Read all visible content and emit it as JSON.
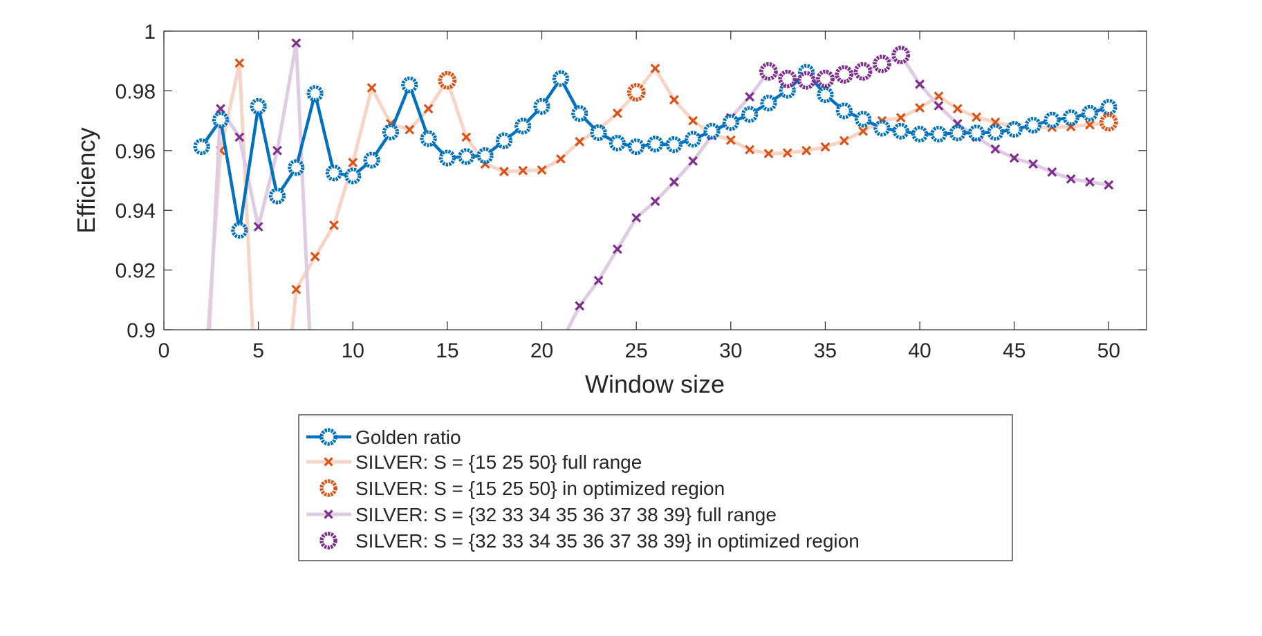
{
  "chart_data": {
    "type": "line",
    "title": "",
    "xlabel": "Window size",
    "ylabel": "Efficiency",
    "xlim": [
      0,
      52
    ],
    "ylim": [
      0.9,
      1
    ],
    "xticks": [
      0,
      5,
      10,
      15,
      20,
      25,
      30,
      35,
      40,
      45,
      50
    ],
    "xtick_labels": [
      "0",
      "5",
      "10",
      "15",
      "20",
      "25",
      "30",
      "35",
      "40",
      "45",
      "50"
    ],
    "yticks": [
      0.9,
      0.92,
      0.94,
      0.96,
      0.98,
      1
    ],
    "ytick_labels": [
      "0.9",
      "0.92",
      "0.94",
      "0.96",
      "0.98",
      "1"
    ],
    "grid": false,
    "legend_position": "below the axes",
    "x": [
      2,
      3,
      4,
      5,
      6,
      7,
      8,
      9,
      10,
      11,
      12,
      13,
      14,
      15,
      16,
      17,
      18,
      19,
      20,
      21,
      22,
      23,
      24,
      25,
      26,
      27,
      28,
      29,
      30,
      31,
      32,
      33,
      34,
      35,
      36,
      37,
      38,
      39,
      40,
      41,
      42,
      43,
      44,
      45,
      46,
      47,
      48,
      49,
      50
    ],
    "series": [
      {
        "name": "Golden ratio",
        "color": "#0072BD",
        "marker": "circle",
        "values": [
          0.9613,
          0.9703,
          0.9333,
          0.9748,
          0.9448,
          0.9543,
          0.9791,
          0.9525,
          0.9515,
          0.9568,
          0.9662,
          0.982,
          0.964,
          0.9575,
          0.958,
          0.9583,
          0.9633,
          0.9682,
          0.9748,
          0.9841,
          0.9724,
          0.966,
          0.9625,
          0.9613,
          0.9622,
          0.962,
          0.9638,
          0.9665,
          0.9694,
          0.9721,
          0.9759,
          0.9802,
          0.9862,
          0.9787,
          0.9733,
          0.9705,
          0.9675,
          0.9665,
          0.9655,
          0.9655,
          0.9659,
          0.9659,
          0.9661,
          0.9671,
          0.9685,
          0.9702,
          0.971,
          0.9725,
          0.9745
        ]
      },
      {
        "name": "SILVER: S = {15  25  50} full range",
        "color": "#D95319",
        "marker": "x",
        "faded": true,
        "values": [
          0.87,
          0.96,
          0.9893,
          0.86,
          0.85,
          0.9135,
          0.9245,
          0.935,
          0.956,
          0.981,
          0.969,
          0.967,
          0.974,
          0.9835,
          0.9645,
          0.9555,
          0.953,
          0.9533,
          0.9535,
          0.9572,
          0.963,
          0.967,
          0.9725,
          0.9795,
          0.9875,
          0.977,
          0.97,
          0.9655,
          0.9635,
          0.9603,
          0.959,
          0.9592,
          0.96,
          0.9612,
          0.9633,
          0.9665,
          0.97,
          0.971,
          0.9743,
          0.9782,
          0.974,
          0.9712,
          0.9695,
          0.968,
          0.9677,
          0.9678,
          0.968,
          0.9686,
          0.9695
        ]
      },
      {
        "name": "SILVER: S = {15  25  50} in optimized region",
        "color": "#D95319",
        "marker": "circle",
        "x": [
          15,
          25,
          50
        ],
        "values": [
          0.9835,
          0.9795,
          0.9695
        ]
      },
      {
        "name": "SILVER: S = {32  33  34  35  36  37  38  39} full range",
        "color": "#7E2F8E",
        "marker": "x",
        "faded": true,
        "values": [
          0.85,
          0.974,
          0.9645,
          0.9345,
          0.96,
          0.996,
          0.86,
          null,
          null,
          null,
          null,
          null,
          null,
          null,
          null,
          null,
          null,
          null,
          null,
          0.8955,
          0.908,
          0.9165,
          0.927,
          0.9375,
          0.943,
          0.9495,
          0.9565,
          0.965,
          0.971,
          0.978,
          0.9865,
          0.984,
          0.9835,
          0.984,
          0.9855,
          0.9865,
          0.989,
          0.992,
          0.9822,
          0.975,
          0.969,
          0.9645,
          0.9605,
          0.9575,
          0.9555,
          0.9528,
          0.9505,
          0.9495,
          0.9485
        ]
      },
      {
        "name": "SILVER: S = {32  33  34  35  36  37  38  39} in optimized region",
        "color": "#7E2F8E",
        "marker": "circle",
        "x": [
          32,
          33,
          34,
          35,
          36,
          37,
          38,
          39
        ],
        "values": [
          0.9865,
          0.984,
          0.9835,
          0.984,
          0.9855,
          0.9865,
          0.989,
          0.992
        ]
      }
    ]
  }
}
